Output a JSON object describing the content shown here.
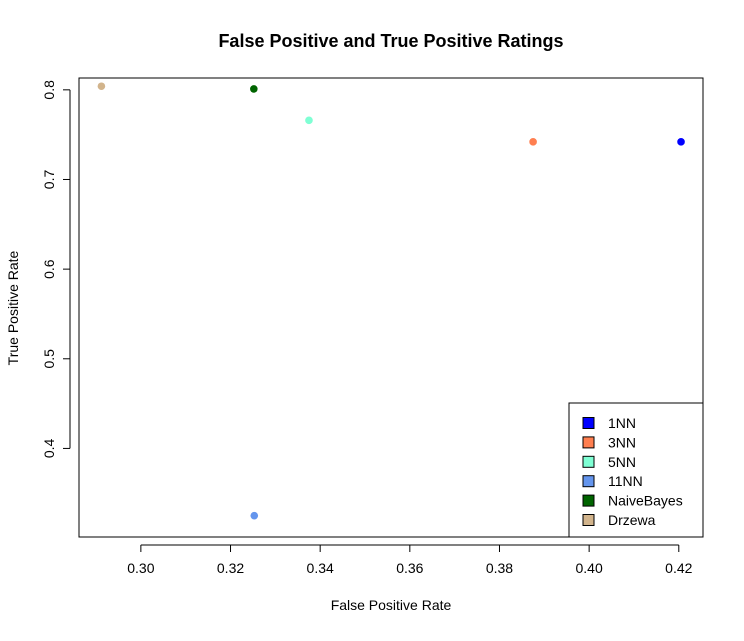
{
  "chart_data": {
    "type": "scatter",
    "title": "False Positive and True Positive Ratings",
    "xlabel": "False Positive Rate",
    "ylabel": "True Positive Rate",
    "xlim": [
      0.2862,
      0.4254
    ],
    "ylim": [
      0.3012,
      0.8132
    ],
    "xticks": [
      0.3,
      0.32,
      0.34,
      0.36,
      0.38,
      0.4,
      0.42
    ],
    "xtick_labels": [
      "0.30",
      "0.32",
      "0.34",
      "0.36",
      "0.38",
      "0.40",
      "0.42"
    ],
    "yticks": [
      0.4,
      0.5,
      0.6,
      0.7,
      0.8
    ],
    "ytick_labels": [
      "0.4",
      "0.5",
      "0.6",
      "0.7",
      "0.8"
    ],
    "grid": false,
    "legend_position": "bottom-right",
    "series": [
      {
        "name": "1NN",
        "color": "#0000ff",
        "x": [
          0.4205
        ],
        "y": [
          0.742
        ]
      },
      {
        "name": "3NN",
        "color": "#ff7f50",
        "x": [
          0.3875
        ],
        "y": [
          0.742
        ]
      },
      {
        "name": "5NN",
        "color": "#7fffd4",
        "x": [
          0.3375
        ],
        "y": [
          0.766
        ]
      },
      {
        "name": "11NN",
        "color": "#6495ed",
        "x": [
          0.3253
        ],
        "y": [
          0.325
        ]
      },
      {
        "name": "NaiveBayes",
        "color": "#006400",
        "x": [
          0.3252
        ],
        "y": [
          0.801
        ]
      },
      {
        "name": "Drzewa",
        "color": "#d2b48c",
        "x": [
          0.2912
        ],
        "y": [
          0.804
        ]
      }
    ]
  }
}
